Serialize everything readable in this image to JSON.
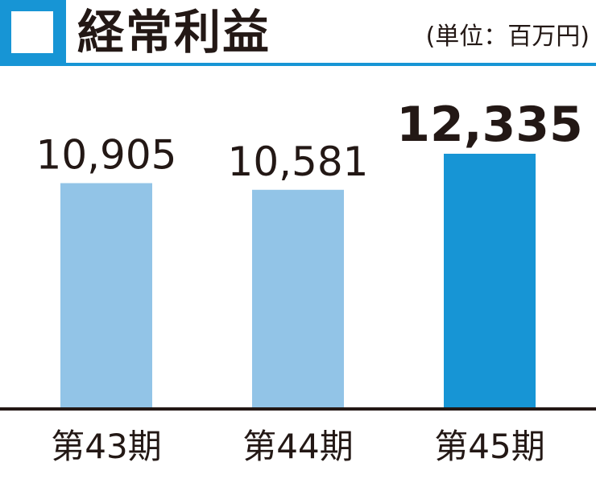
{
  "chart_data": {
    "type": "bar",
    "title": "経常利益",
    "unit": "(単位：百万円)",
    "categories": [
      "第43期",
      "第44期",
      "第45期"
    ],
    "values": [
      10905,
      10581,
      12335
    ],
    "value_labels": [
      "10,905",
      "10,581",
      "12,335"
    ],
    "ylim": [
      0,
      13000
    ],
    "highlight_index": 2,
    "colors": {
      "bar": "#92C4E7",
      "highlight": "#1795D5",
      "header": "#1795D5",
      "axis": "#231815"
    }
  }
}
